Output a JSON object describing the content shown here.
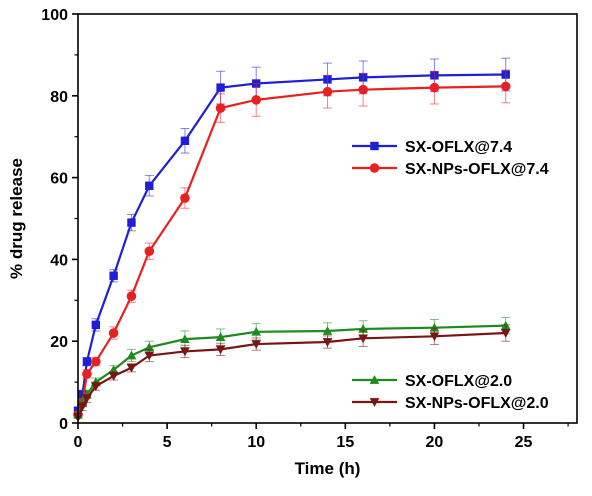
{
  "chart_data": {
    "type": "line",
    "title": "",
    "xlabel": "Time (h)",
    "ylabel": "% drug release",
    "xlim": [
      0,
      28
    ],
    "ylim": [
      0,
      100
    ],
    "xticks": [
      0,
      5,
      10,
      15,
      20,
      25
    ],
    "yticks": [
      0,
      20,
      40,
      60,
      80,
      100
    ],
    "grid": false,
    "legend_placement": [
      "center-right",
      "bottom-right"
    ],
    "x": [
      0,
      0.25,
      0.5,
      1,
      2,
      3,
      4,
      6,
      8,
      10,
      14,
      16,
      20,
      24
    ],
    "series": [
      {
        "name": "SX-OFLX@7.4",
        "color": "#1f1fd6",
        "marker": "square",
        "legend_group": 0,
        "values": [
          3,
          7,
          15,
          24,
          36,
          49,
          58,
          69,
          82,
          83,
          84,
          84.5,
          85,
          85.2
        ],
        "errors": [
          0,
          1,
          1,
          1.5,
          1.5,
          2,
          2.5,
          3,
          4,
          4,
          4,
          4,
          4,
          4
        ]
      },
      {
        "name": "SX-NPs-OFLX@7.4",
        "color": "#e82020",
        "marker": "circle",
        "legend_group": 0,
        "values": [
          2,
          5,
          12,
          15,
          22,
          31,
          42,
          55,
          77,
          79,
          81,
          81.5,
          82,
          82.3
        ],
        "errors": [
          0,
          1,
          1,
          1,
          1.5,
          1.5,
          2,
          2.5,
          3.5,
          4,
          4,
          4,
          4,
          4
        ]
      },
      {
        "name": "SX-OFLX@2.0",
        "color": "#1f8a1f",
        "marker": "triangle-up",
        "legend_group": 1,
        "values": [
          2,
          5,
          7,
          10,
          13,
          16.5,
          18.5,
          20.5,
          21,
          22.3,
          22.5,
          23,
          23.3,
          23.8
        ],
        "errors": [
          0,
          1,
          1,
          1,
          1,
          1.5,
          1.5,
          2,
          2,
          2,
          2,
          2,
          2,
          2
        ]
      },
      {
        "name": "SX-NPs-OFLX@2.0",
        "color": "#7a1515",
        "marker": "triangle-down",
        "legend_group": 1,
        "values": [
          1.5,
          4,
          6,
          9,
          11.5,
          13.5,
          16.5,
          17.5,
          18,
          19.3,
          19.8,
          20.7,
          21.2,
          22
        ],
        "errors": [
          0,
          1,
          1,
          1,
          1,
          1,
          1.5,
          1.5,
          1.5,
          1.5,
          1.5,
          2,
          2,
          2
        ]
      }
    ]
  }
}
